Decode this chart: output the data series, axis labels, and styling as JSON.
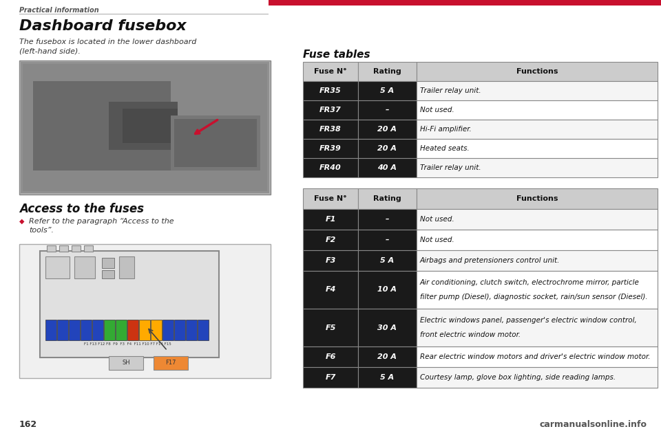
{
  "page_bg": "#ffffff",
  "header_text": "Practical information",
  "title": "Dashboard fusebox",
  "body_text": "The fusebox is located in the lower dashboard\n(left-hand side).",
  "access_title": "Access to the fuses",
  "access_bullet": "Refer to the paragraph “Access to the\ntools”.",
  "fuse_tables_title": "Fuse tables",
  "table1_headers": [
    "Fuse N°",
    "Rating",
    "Functions"
  ],
  "table1_rows": [
    [
      "FR35",
      "5 A",
      "Trailer relay unit."
    ],
    [
      "FR37",
      "–",
      "Not used."
    ],
    [
      "FR38",
      "20 A",
      "Hi-Fi amplifier."
    ],
    [
      "FR39",
      "20 A",
      "Heated seats."
    ],
    [
      "FR40",
      "40 A",
      "Trailer relay unit."
    ]
  ],
  "table2_headers": [
    "Fuse N°",
    "Rating",
    "Functions"
  ],
  "table2_rows": [
    [
      "F1",
      "–",
      "Not used."
    ],
    [
      "F2",
      "–",
      "Not used."
    ],
    [
      "F3",
      "5 A",
      "Airbags and pretensioners control unit."
    ],
    [
      "F4",
      "10 A",
      "Air conditioning, clutch switch, electrochrome mirror, particle\nfilter pump (Diesel), diagnostic socket, rain/sun sensor (Diesel)."
    ],
    [
      "F5",
      "30 A",
      "Electric windows panel, passenger's electric window control,\nfront electric window motor."
    ],
    [
      "F6",
      "20 A",
      "Rear electric window motors and driver's electric window motor."
    ],
    [
      "F7",
      "5 A",
      "Courtesy lamp, glove box lighting, side reading lamps."
    ]
  ],
  "page_number": "162",
  "watermark_text": "carmanualsonline.info",
  "red_color": "#c8102e",
  "dark_color": "#1a1a1a",
  "header_bg": "#cccccc",
  "border_color": "#888888",
  "light_text": "#ffffff",
  "dark_text": "#111111",
  "fuse_colors_bottom": [
    "#2244bb",
    "#2244bb",
    "#2244bb",
    "#2244bb",
    "#2244bb",
    "#33aa33",
    "#33aa33",
    "#cc3311",
    "#ffaa00",
    "#ffaa00",
    "#2244bb",
    "#2244bb",
    "#2244bb",
    "#2244bb"
  ],
  "relay_sh_color": "#cccccc",
  "relay_f17_color": "#ee8833"
}
